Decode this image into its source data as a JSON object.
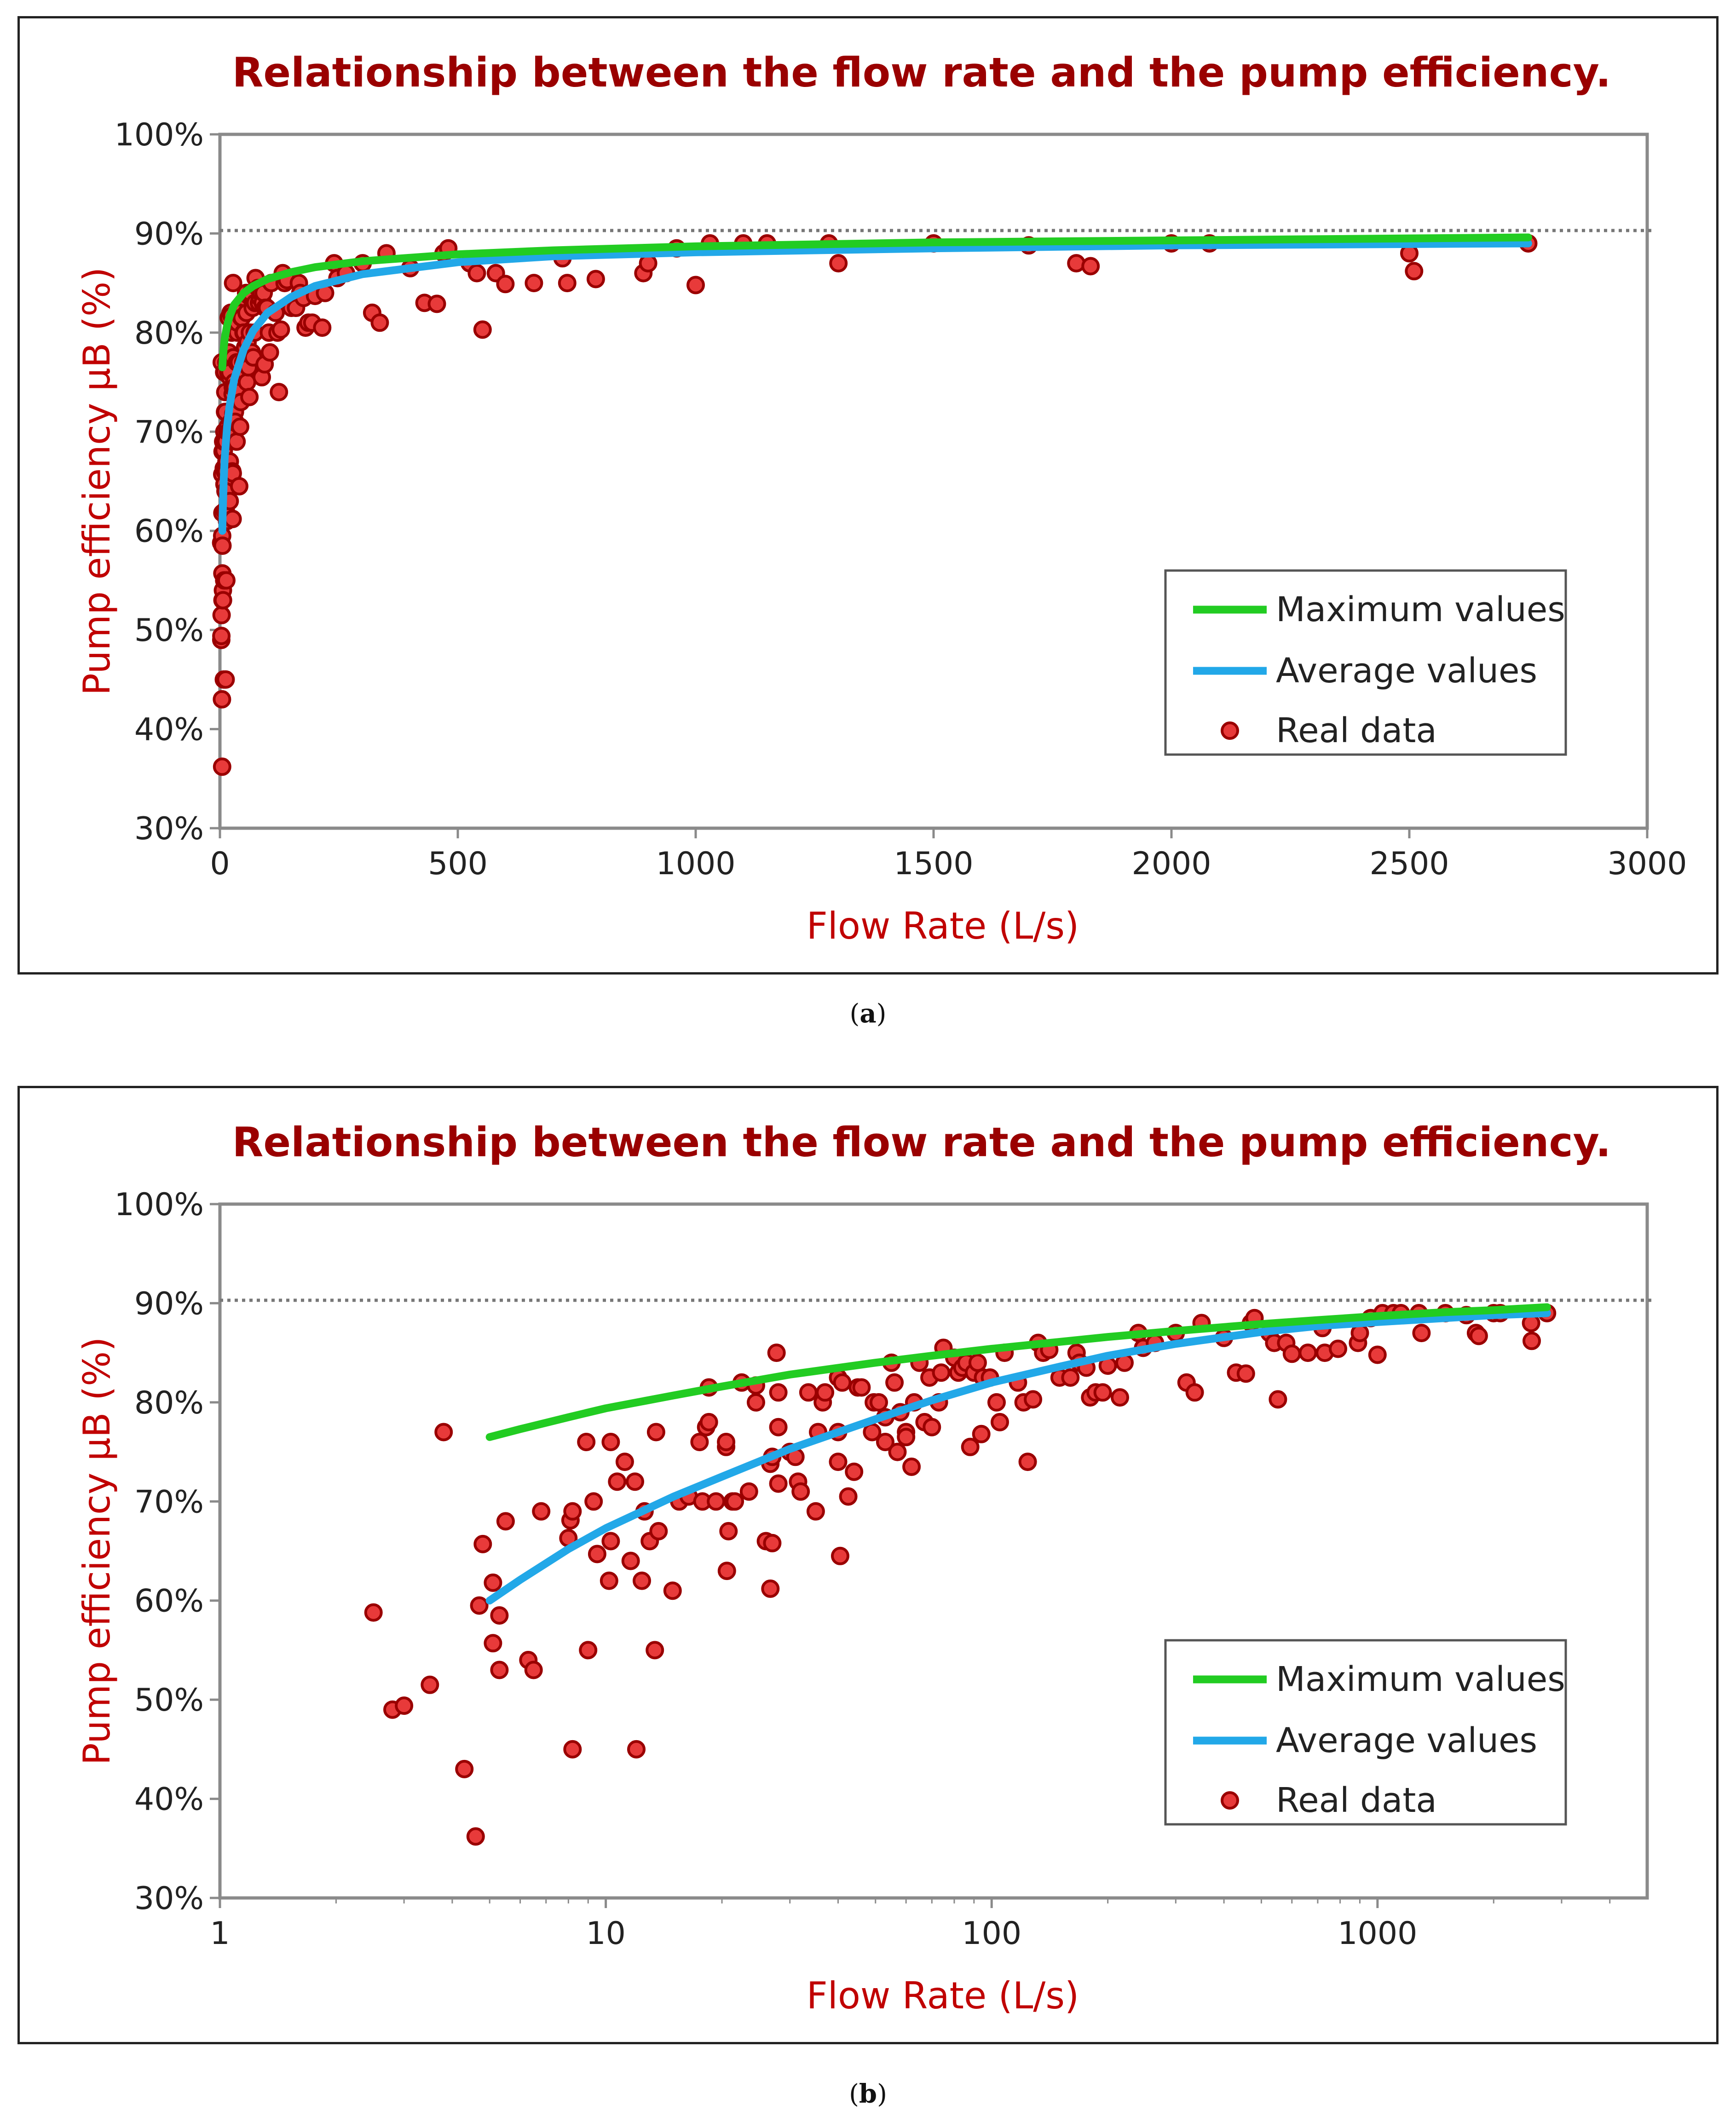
{
  "colors": {
    "title": "#9a0000",
    "axis_title": "#c00000",
    "max_line": "#22cc22",
    "avg_line": "#22a8e8",
    "points_fill": "#e83a3a",
    "points_edge": "#9a0000",
    "frame": "#8a8a8a",
    "ref_line": "#777777"
  },
  "captions": {
    "a": "a",
    "b": "b"
  },
  "chart_data": [
    {
      "id": "a",
      "type": "scatter",
      "title": "Relationship between the flow rate and the pump efficiency.",
      "xlabel": "Flow Rate (L/s)",
      "ylabel": "Pump efficiency µB (%)",
      "x_scale": "linear",
      "xlim": [
        0,
        3000
      ],
      "ylim": [
        30,
        100
      ],
      "x_ticks": [
        0,
        500,
        1000,
        1500,
        2000,
        2500,
        3000
      ],
      "x_tick_labels": [
        "0",
        "500",
        "1000",
        "1500",
        "2000",
        "2500",
        "3000"
      ],
      "y_ticks": [
        30,
        40,
        50,
        60,
        70,
        80,
        90,
        100
      ],
      "y_tick_labels": [
        "30%",
        "40%",
        "50%",
        "60%",
        "70%",
        "80%",
        "90%",
        "100%"
      ],
      "reference_line_y": 90.3,
      "legend": [
        "Maximum values",
        "Average values",
        "Real data"
      ],
      "legend_position": "right, lower-middle"
    },
    {
      "id": "b",
      "type": "scatter",
      "title": "Relationship between the flow rate and the pump efficiency.",
      "xlabel": "Flow Rate (L/s)",
      "ylabel": "Pump efficiency µB (%)",
      "x_scale": "log",
      "xlim": [
        1,
        5000
      ],
      "ylim": [
        30,
        100
      ],
      "x_ticks": [
        1,
        10,
        100,
        1000
      ],
      "x_tick_labels": [
        "1",
        "10",
        "100",
        "1000"
      ],
      "y_ticks": [
        30,
        40,
        50,
        60,
        70,
        80,
        90,
        100
      ],
      "y_tick_labels": [
        "30%",
        "40%",
        "50%",
        "60%",
        "70%",
        "80%",
        "90%",
        "100%"
      ],
      "reference_line_y": 90.3,
      "legend": [
        "Maximum values",
        "Average values",
        "Real data"
      ],
      "legend_position": "right, lower-middle"
    }
  ],
  "series": {
    "max_curve": [
      [
        5,
        76.5
      ],
      [
        6,
        77.3
      ],
      [
        8,
        78.5
      ],
      [
        10,
        79.4
      ],
      [
        15,
        80.7
      ],
      [
        20,
        81.6
      ],
      [
        30,
        82.8
      ],
      [
        50,
        84.0
      ],
      [
        70,
        84.7
      ],
      [
        100,
        85.4
      ],
      [
        150,
        86.1
      ],
      [
        200,
        86.6
      ],
      [
        300,
        87.2
      ],
      [
        500,
        87.9
      ],
      [
        700,
        88.3
      ],
      [
        1000,
        88.7
      ],
      [
        1500,
        89.1
      ],
      [
        2000,
        89.3
      ],
      [
        2750,
        89.6
      ]
    ],
    "avg_curve": [
      [
        5,
        60.0
      ],
      [
        6,
        62.1
      ],
      [
        8,
        65.2
      ],
      [
        10,
        67.3
      ],
      [
        15,
        70.5
      ],
      [
        20,
        72.5
      ],
      [
        30,
        75.3
      ],
      [
        50,
        78.3
      ],
      [
        70,
        80.2
      ],
      [
        100,
        82.0
      ],
      [
        150,
        83.6
      ],
      [
        200,
        84.7
      ],
      [
        300,
        85.9
      ],
      [
        500,
        87.1
      ],
      [
        700,
        87.7
      ],
      [
        1000,
        88.1
      ],
      [
        1500,
        88.5
      ],
      [
        2000,
        88.8
      ],
      [
        2750,
        89.0
      ]
    ],
    "real_data": [
      [
        2.5,
        58.8
      ],
      [
        2.8,
        49.0
      ],
      [
        3.0,
        49.4
      ],
      [
        3.5,
        51.5
      ],
      [
        3.8,
        77.0
      ],
      [
        4.3,
        43.0
      ],
      [
        4.6,
        36.2
      ],
      [
        4.7,
        59.5
      ],
      [
        4.8,
        65.7
      ],
      [
        5.1,
        61.8
      ],
      [
        5.1,
        55.7
      ],
      [
        5.3,
        53.0
      ],
      [
        5.3,
        58.5
      ],
      [
        5.5,
        68.0
      ],
      [
        6.3,
        54.0
      ],
      [
        6.5,
        53.0
      ],
      [
        6.8,
        69.0
      ],
      [
        8.0,
        66.3
      ],
      [
        8.1,
        68.1
      ],
      [
        8.2,
        45.0
      ],
      [
        8.2,
        69.0
      ],
      [
        8.9,
        76.0
      ],
      [
        9.0,
        55.0
      ],
      [
        9.3,
        70.0
      ],
      [
        9.5,
        64.7
      ],
      [
        10.2,
        62.0
      ],
      [
        10.3,
        76.0
      ],
      [
        10.3,
        66.0
      ],
      [
        10.7,
        72.0
      ],
      [
        11.2,
        74.0
      ],
      [
        11.6,
        64.0
      ],
      [
        11.9,
        72.0
      ],
      [
        12.0,
        45.0
      ],
      [
        12.4,
        62.0
      ],
      [
        12.6,
        69.0
      ],
      [
        13.0,
        66.0
      ],
      [
        13.4,
        55.0
      ],
      [
        13.5,
        77.0
      ],
      [
        13.7,
        67.0
      ],
      [
        14.9,
        61.0
      ],
      [
        15.5,
        70.0
      ],
      [
        16.4,
        70.5
      ],
      [
        17.5,
        76.0
      ],
      [
        17.8,
        70.0
      ],
      [
        18.2,
        77.5
      ],
      [
        18.5,
        78.0
      ],
      [
        18.5,
        81.5
      ],
      [
        19.3,
        70.0
      ],
      [
        20.5,
        75.5
      ],
      [
        20.5,
        76.0
      ],
      [
        20.6,
        63.0
      ],
      [
        20.8,
        67.0
      ],
      [
        21.3,
        70.0
      ],
      [
        21.6,
        70.0
      ],
      [
        22.5,
        82.0
      ],
      [
        23.5,
        71.0
      ],
      [
        24.5,
        81.7
      ],
      [
        24.5,
        80.0
      ],
      [
        26.0,
        66.0
      ],
      [
        26.7,
        61.2
      ],
      [
        26.7,
        73.8
      ],
      [
        27.0,
        74.5
      ],
      [
        27.0,
        65.8
      ],
      [
        27.7,
        85.0
      ],
      [
        28.0,
        77.5
      ],
      [
        28.0,
        81.0
      ],
      [
        28.0,
        71.8
      ],
      [
        30.0,
        75.0
      ],
      [
        31.0,
        74.5
      ],
      [
        31.5,
        72.0
      ],
      [
        32.0,
        71.0
      ],
      [
        33.5,
        81.0
      ],
      [
        35.0,
        69.0
      ],
      [
        35.5,
        77.0
      ],
      [
        36.5,
        80.0
      ],
      [
        37.0,
        81.0
      ],
      [
        40.0,
        74.0
      ],
      [
        40.0,
        77.0
      ],
      [
        40.0,
        82.5
      ],
      [
        40.5,
        64.5
      ],
      [
        41.0,
        82.0
      ],
      [
        42.5,
        70.5
      ],
      [
        44.0,
        73.0
      ],
      [
        45.0,
        81.5
      ],
      [
        46.0,
        81.5
      ],
      [
        49.0,
        77.0
      ],
      [
        49.5,
        80.0
      ],
      [
        51.0,
        80.0
      ],
      [
        53.0,
        78.5
      ],
      [
        53.0,
        76.0
      ],
      [
        55.0,
        84.0
      ],
      [
        56.0,
        82.0
      ],
      [
        57.0,
        75.0
      ],
      [
        58.0,
        79.0
      ],
      [
        60.0,
        77.0
      ],
      [
        60.0,
        76.5
      ],
      [
        62.0,
        73.5
      ],
      [
        63.0,
        80.0
      ],
      [
        65.0,
        84.0
      ],
      [
        67.0,
        78.0
      ],
      [
        69.0,
        82.5
      ],
      [
        70.0,
        77.5
      ],
      [
        73.0,
        80.0
      ],
      [
        74.0,
        83.0
      ],
      [
        75.0,
        85.5
      ],
      [
        80.0,
        84.5
      ],
      [
        82.0,
        83.0
      ],
      [
        84.0,
        83.5
      ],
      [
        86.0,
        84.0
      ],
      [
        88.0,
        75.5
      ],
      [
        90.0,
        83.0
      ],
      [
        92.0,
        84.0
      ],
      [
        94.0,
        76.8
      ],
      [
        95.0,
        82.5
      ],
      [
        99.0,
        82.5
      ],
      [
        103.0,
        80.0
      ],
      [
        105.0,
        78.0
      ],
      [
        108.0,
        85.0
      ],
      [
        117.0,
        82.0
      ],
      [
        121.0,
        80.0
      ],
      [
        124.0,
        74.0
      ],
      [
        128.0,
        80.3
      ],
      [
        132.0,
        86.0
      ],
      [
        136.0,
        85.0
      ],
      [
        141.0,
        85.3
      ],
      [
        150.0,
        82.5
      ],
      [
        160.0,
        82.5
      ],
      [
        166.0,
        85.0
      ],
      [
        169.0,
        84.0
      ],
      [
        176.0,
        83.5
      ],
      [
        180.0,
        80.5
      ],
      [
        186.0,
        81.0
      ],
      [
        194.0,
        81.0
      ],
      [
        200.0,
        83.7
      ],
      [
        215.0,
        80.5
      ],
      [
        221.0,
        84.0
      ],
      [
        240.0,
        87.0
      ],
      [
        247.0,
        85.5
      ],
      [
        265.0,
        86.0
      ],
      [
        300.0,
        87.0
      ],
      [
        320.0,
        82.0
      ],
      [
        336.0,
        81.0
      ],
      [
        350.0,
        88.0
      ],
      [
        400.0,
        86.5
      ],
      [
        430.0,
        83.0
      ],
      [
        456.0,
        82.9
      ],
      [
        470.0,
        88.0
      ],
      [
        480.0,
        88.5
      ],
      [
        525.0,
        87.0
      ],
      [
        540.0,
        86.0
      ],
      [
        552.0,
        80.3
      ],
      [
        580.0,
        86.0
      ],
      [
        600.0,
        84.9
      ],
      [
        660.0,
        85.0
      ],
      [
        720.0,
        87.5
      ],
      [
        730.0,
        85.0
      ],
      [
        790.0,
        85.4
      ],
      [
        890.0,
        86.0
      ],
      [
        900.0,
        87.0
      ],
      [
        960.0,
        88.5
      ],
      [
        1000.0,
        84.8
      ],
      [
        1030.0,
        89.0
      ],
      [
        1100.0,
        89.0
      ],
      [
        1150.0,
        89.0
      ],
      [
        1280.0,
        89.0
      ],
      [
        1300.0,
        87.0
      ],
      [
        1500.0,
        89.0
      ],
      [
        1700.0,
        88.8
      ],
      [
        1800.0,
        87.0
      ],
      [
        1830.0,
        86.7
      ],
      [
        2000.0,
        89.0
      ],
      [
        2080.0,
        89.0
      ],
      [
        2500.0,
        88.0
      ],
      [
        2510.0,
        86.2
      ],
      [
        2750.0,
        89.0
      ]
    ]
  },
  "legend_labels": [
    "Maximum values",
    "Average values",
    "Real data"
  ]
}
